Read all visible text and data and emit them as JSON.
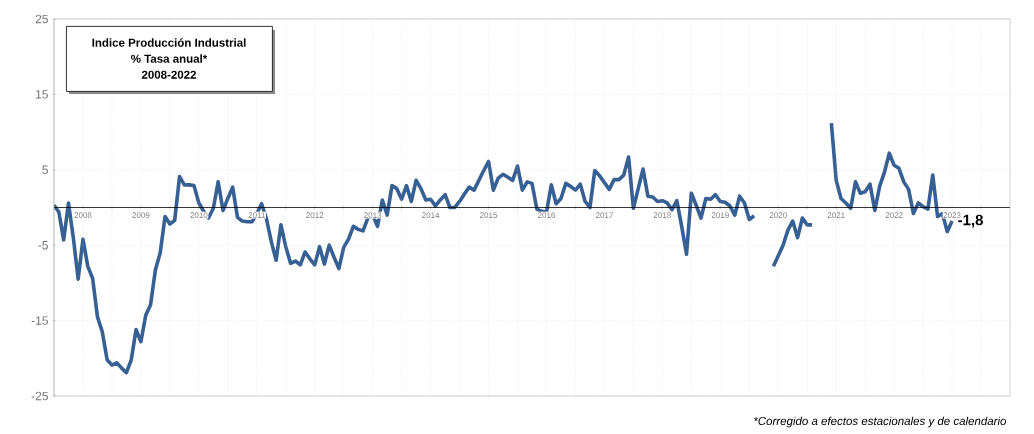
{
  "chart_data": {
    "type": "line",
    "title": "Indice Producción Industrial",
    "subtitle": "% Tasa anual*",
    "annotations": [
      "2008-2022",
      "*Corregido a efectos estacionales y de calendario",
      {
        "text": "-1,8",
        "x": "2023-07",
        "y": -1.8
      }
    ],
    "x": [
      "2008-01",
      "2008-02",
      "2008-03",
      "2008-04",
      "2008-05",
      "2008-06",
      "2008-07",
      "2008-08",
      "2008-09",
      "2008-10",
      "2008-11",
      "2008-12",
      "2009-01",
      "2009-02",
      "2009-03",
      "2009-04",
      "2009-05",
      "2009-06",
      "2009-07",
      "2009-08",
      "2009-09",
      "2009-10",
      "2009-11",
      "2009-12",
      "2010-01",
      "2010-02",
      "2010-03",
      "2010-04",
      "2010-05",
      "2010-06",
      "2010-07",
      "2010-08",
      "2010-09",
      "2010-10",
      "2010-11",
      "2010-12",
      "2011-01",
      "2011-02",
      "2011-03",
      "2011-04",
      "2011-05",
      "2011-06",
      "2011-07",
      "2011-08",
      "2011-09",
      "2011-10",
      "2011-11",
      "2011-12",
      "2012-01",
      "2012-02",
      "2012-03",
      "2012-04",
      "2012-05",
      "2012-06",
      "2012-07",
      "2012-08",
      "2012-09",
      "2012-10",
      "2012-11",
      "2012-12",
      "2013-01",
      "2013-02",
      "2013-03",
      "2013-04",
      "2013-05",
      "2013-06",
      "2013-07",
      "2013-08",
      "2013-09",
      "2013-10",
      "2013-11",
      "2013-12",
      "2014-01",
      "2014-02",
      "2014-03",
      "2014-04",
      "2014-05",
      "2014-06",
      "2014-07",
      "2014-08",
      "2014-09",
      "2014-10",
      "2014-11",
      "2014-12",
      "2015-01",
      "2015-02",
      "2015-03",
      "2015-04",
      "2015-05",
      "2015-06",
      "2015-07",
      "2015-08",
      "2015-09",
      "2015-10",
      "2015-11",
      "2015-12",
      "2016-01",
      "2016-02",
      "2016-03",
      "2016-04",
      "2016-05",
      "2016-06",
      "2016-07",
      "2016-08",
      "2016-09",
      "2016-10",
      "2016-11",
      "2016-12",
      "2017-01",
      "2017-02",
      "2017-03",
      "2017-04",
      "2017-05",
      "2017-06",
      "2017-07",
      "2017-08",
      "2017-09",
      "2017-10",
      "2017-11",
      "2017-12",
      "2018-01",
      "2018-02",
      "2018-03",
      "2018-04",
      "2018-05",
      "2018-06",
      "2018-07",
      "2018-08",
      "2018-09",
      "2018-10",
      "2018-11",
      "2018-12",
      "2019-01",
      "2019-02",
      "2019-03",
      "2019-04",
      "2019-05",
      "2019-06",
      "2019-07",
      "2019-08",
      "2019-09",
      "2019-10",
      "2019-11",
      "2019-12",
      "2020-01",
      "2020-02",
      "2020-03",
      "2020-04",
      "2020-05",
      "2020-06",
      "2020-07",
      "2020-08",
      "2020-09",
      "2020-10",
      "2020-11",
      "2020-12",
      "2021-01",
      "2021-02",
      "2021-03",
      "2021-04",
      "2021-05",
      "2021-06",
      "2021-07",
      "2021-08",
      "2021-09",
      "2021-10",
      "2021-11",
      "2021-12",
      "2022-01",
      "2022-02",
      "2022-03",
      "2022-04",
      "2022-05",
      "2022-06",
      "2022-07",
      "2022-08",
      "2022-09",
      "2022-10",
      "2022-11",
      "2022-12",
      "2023-01",
      "2023-02",
      "2023-03",
      "2023-04",
      "2023-05",
      "2023-06",
      "2023-07"
    ],
    "series": [
      {
        "color": "#365f94",
        "values": [
          0.3,
          -0.6,
          -4.3,
          0.6,
          -4.0,
          -9.5,
          -4.2,
          -7.8,
          -9.4,
          -14.5,
          -16.5,
          -20.2,
          -20.9,
          -20.6,
          -21.3,
          -21.9,
          -20.2,
          -16.2,
          -17.8,
          -14.3,
          -12.9,
          -8.3,
          -6.0,
          -1.2,
          -2.2,
          -1.7,
          4.1,
          3.0,
          3.0,
          2.9,
          0.6,
          -0.5,
          -1.4,
          -0.1,
          3.4,
          -0.4,
          1.2,
          2.7,
          -1.3,
          -1.8,
          -1.9,
          -1.9,
          -0.8,
          0.5,
          -1.5,
          -4.5,
          -7.0,
          -2.3,
          -5.2,
          -7.4,
          -7.1,
          -7.6,
          -5.9,
          -6.8,
          -7.6,
          -5.2,
          -7.5,
          -5.0,
          -6.6,
          -8.1,
          -5.3,
          -4.2,
          -2.5,
          -2.9,
          -3.1,
          -1.4,
          -1.0,
          -2.5,
          1.0,
          -1.0,
          2.9,
          2.5,
          1.1,
          2.9,
          0.8,
          3.6,
          2.5,
          1.0,
          1.1,
          0.2,
          1.0,
          1.7,
          0.0,
          0.0,
          0.8,
          1.8,
          2.7,
          2.3,
          3.6,
          4.9,
          6.1,
          2.3,
          3.9,
          4.4,
          4.0,
          3.6,
          5.5,
          2.3,
          3.4,
          3.2,
          -0.2,
          -0.5,
          -0.6,
          3.0,
          0.5,
          1.2,
          3.2,
          2.8,
          2.3,
          3.1,
          0.8,
          0.0,
          4.9,
          4.2,
          3.3,
          2.4,
          3.7,
          3.7,
          4.3,
          6.7,
          -0.1,
          2.5,
          5.1,
          1.5,
          1.4,
          0.8,
          0.9,
          0.6,
          -0.3,
          0.9,
          -2.5,
          -6.2,
          1.9,
          0.3,
          -1.4,
          1.2,
          1.1,
          1.7,
          0.8,
          0.7,
          0.2,
          -1.0,
          1.5,
          0.6,
          -1.6,
          -1.1,
          null,
          null,
          null,
          -7.8,
          -6.4,
          -5.0,
          -3.0,
          -1.8,
          -4.0,
          -1.4,
          -2.3,
          -2.3,
          null,
          null,
          null,
          11.2,
          3.6,
          1.2,
          0.6,
          -0.1,
          3.4,
          1.9,
          2.1,
          3.1,
          -0.4,
          2.8,
          4.7,
          7.2,
          5.6,
          5.2,
          3.4,
          2.4,
          -0.8,
          0.6,
          0.1,
          -0.2,
          4.3,
          -1.2,
          -0.8,
          -3.2,
          -1.8
        ]
      }
    ],
    "xlim": [
      "2008-01",
      "2024-07"
    ],
    "xticks": [
      {
        "value": "2008-01",
        "label": null
      },
      {
        "value": "2008-07",
        "label": "2008"
      },
      {
        "value": "2009-01",
        "label": null
      },
      {
        "value": "2009-07",
        "label": "2009"
      },
      {
        "value": "2010-01",
        "label": null
      },
      {
        "value": "2010-07",
        "label": "2010"
      },
      {
        "value": "2011-01",
        "label": null
      },
      {
        "value": "2011-07",
        "label": "2011"
      },
      {
        "value": "2012-01",
        "label": null
      },
      {
        "value": "2012-07",
        "label": "2012"
      },
      {
        "value": "2013-01",
        "label": null
      },
      {
        "value": "2013-07",
        "label": "2013"
      },
      {
        "value": "2014-01",
        "label": null
      },
      {
        "value": "2014-07",
        "label": "2014"
      },
      {
        "value": "2015-01",
        "label": null
      },
      {
        "value": "2015-07",
        "label": "2015"
      },
      {
        "value": "2016-01",
        "label": null
      },
      {
        "value": "2016-07",
        "label": "2016"
      },
      {
        "value": "2017-01",
        "label": null
      },
      {
        "value": "2017-07",
        "label": "2017"
      },
      {
        "value": "2018-01",
        "label": null
      },
      {
        "value": "2018-07",
        "label": "2018"
      },
      {
        "value": "2019-01",
        "label": null
      },
      {
        "value": "2019-07",
        "label": "2019"
      },
      {
        "value": "2020-01",
        "label": null
      },
      {
        "value": "2020-07",
        "label": "2020"
      },
      {
        "value": "2021-01",
        "label": null
      },
      {
        "value": "2021-07",
        "label": "2021"
      },
      {
        "value": "2022-01",
        "label": null
      },
      {
        "value": "2022-07",
        "label": "2022"
      },
      {
        "value": "2023-01",
        "label": null
      },
      {
        "value": "2023-07",
        "label": "2023"
      },
      {
        "value": "2024-01",
        "label": null
      }
    ],
    "ylim": [
      -25,
      25
    ],
    "yticks": [
      -25,
      -15,
      -5,
      5,
      15,
      25
    ],
    "grid": true
  }
}
